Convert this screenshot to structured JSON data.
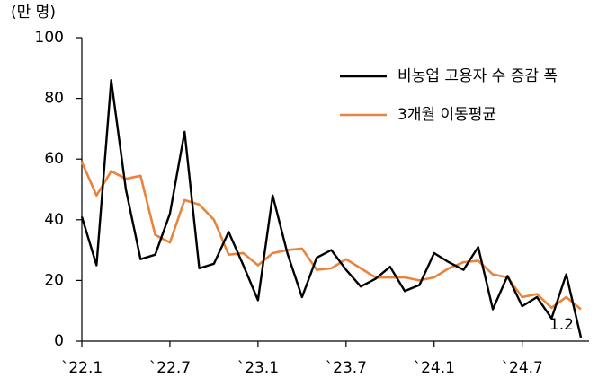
{
  "chart_data": {
    "type": "line",
    "y_label": "(만 명)",
    "categories": [
      "`22.1",
      null,
      null,
      null,
      null,
      null,
      "`22.7",
      null,
      null,
      null,
      null,
      null,
      "`23.1",
      null,
      null,
      null,
      null,
      null,
      "`23.7",
      null,
      null,
      null,
      null,
      null,
      "`24.1",
      null,
      null,
      null,
      null,
      null,
      "`24.7",
      null,
      null,
      null,
      null
    ],
    "series": [
      {
        "name": "비농업 고용자 수 증감 폭",
        "color": "#000000",
        "values": [
          41,
          25,
          86,
          50,
          27,
          28.5,
          42,
          69,
          24,
          25.5,
          36,
          25,
          13.5,
          48,
          29,
          14.5,
          27.5,
          30,
          23.5,
          18,
          20.5,
          24.5,
          16.5,
          18.5,
          29,
          26,
          23.5,
          31,
          10.5,
          21.5,
          11.5,
          14.5,
          7.5,
          22,
          1.2
        ]
      },
      {
        "name": "3개월 이동평균",
        "color": "#e8843c",
        "values": [
          59,
          48,
          56,
          53.5,
          54.5,
          35,
          32.5,
          46.5,
          45,
          40,
          28.5,
          29,
          25,
          29,
          30,
          30.5,
          23.5,
          24,
          27,
          24,
          21,
          21,
          21,
          20,
          21,
          24,
          26,
          26.5,
          22,
          21,
          14.5,
          15.5,
          11,
          14.5,
          10.5
        ]
      }
    ],
    "ylim": [
      0,
      100
    ],
    "yticks": [
      0,
      20,
      40,
      60,
      80,
      100
    ],
    "grid": false
  }
}
